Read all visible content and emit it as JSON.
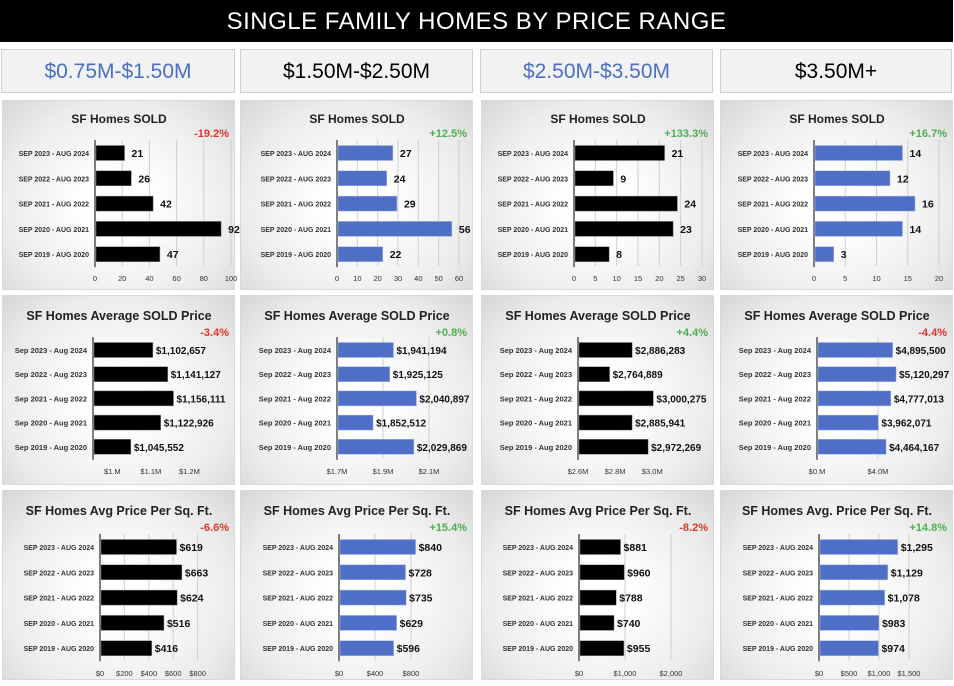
{
  "title": "SINGLE FAMILY HOMES BY PRICE RANGE",
  "colors": {
    "blue": "#4f6fc6",
    "black": "#000000",
    "red": "#e0352b",
    "green": "#4caf50",
    "header_blue": "#4a6fc4"
  },
  "headers": [
    {
      "label": "$0.75M-$1.50M",
      "color": "#4a6fc4"
    },
    {
      "label": "$1.50M-$2.50M",
      "color": "#000000"
    },
    {
      "label": "$2.50M-$3.50M",
      "color": "#4a6fc4"
    },
    {
      "label": "$3.50M+",
      "color": "#000000"
    }
  ],
  "chart_data": [
    {
      "type": "bar",
      "title": "SF Homes SOLD",
      "change": "-19.2%",
      "change_color": "red",
      "bar_color": "black",
      "categories": [
        "SEP 2023 - AUG 2024",
        "SEP 2022 - AUG 2023",
        "SEP 2021 - AUG 2022",
        "SEP 2020 - AUG 2021",
        "SEP 2019 - AUG 2020"
      ],
      "values": [
        21,
        26,
        42,
        92,
        47
      ],
      "labels": [
        "21",
        "26",
        "42",
        "92",
        "47"
      ],
      "xlim": [
        0,
        100
      ],
      "ticks": [
        {
          "v": 0,
          "l": "0"
        },
        {
          "v": 20,
          "l": "20"
        },
        {
          "v": 40,
          "l": "40"
        },
        {
          "v": 60,
          "l": "60"
        },
        {
          "v": 80,
          "l": "80"
        },
        {
          "v": 100,
          "l": "100"
        }
      ],
      "grid": true
    },
    {
      "type": "bar",
      "title": "SF Homes SOLD",
      "change": "+12.5%",
      "change_color": "green",
      "bar_color": "blue",
      "categories": [
        "SEP 2023 - AUG 2024",
        "SEP 2022 - AUG 2023",
        "SEP 2021 - AUG 2022",
        "SEP 2020 - AUG 2021",
        "SEP 2019 - AUG 2020"
      ],
      "values": [
        27,
        24,
        29,
        56,
        22
      ],
      "labels": [
        "27",
        "24",
        "29",
        "56",
        "22"
      ],
      "xlim": [
        0,
        60
      ],
      "ticks": [
        {
          "v": 0,
          "l": "0"
        },
        {
          "v": 10,
          "l": "10"
        },
        {
          "v": 20,
          "l": "20"
        },
        {
          "v": 30,
          "l": "30"
        },
        {
          "v": 40,
          "l": "40"
        },
        {
          "v": 50,
          "l": "50"
        },
        {
          "v": 60,
          "l": "60"
        }
      ],
      "grid": true
    },
    {
      "type": "bar",
      "title": "SF Homes SOLD",
      "change": "+133.3%",
      "change_color": "green",
      "bar_color": "black",
      "categories": [
        "SEP 2023 - AUG 2024",
        "SEP 2022 - AUG 2023",
        "SEP 2021 - AUG 2022",
        "SEP 2020 - AUG 2021",
        "SEP 2019 - AUG 2020"
      ],
      "values": [
        21,
        9,
        24,
        23,
        8
      ],
      "labels": [
        "21",
        "9",
        "24",
        "23",
        "8"
      ],
      "xlim": [
        0,
        30
      ],
      "ticks": [
        {
          "v": 0,
          "l": "0"
        },
        {
          "v": 5,
          "l": "5"
        },
        {
          "v": 10,
          "l": "10"
        },
        {
          "v": 15,
          "l": "15"
        },
        {
          "v": 20,
          "l": "20"
        },
        {
          "v": 25,
          "l": "25"
        },
        {
          "v": 30,
          "l": "30"
        }
      ],
      "grid": true
    },
    {
      "type": "bar",
      "title": "SF Homes SOLD",
      "change": "+16.7%",
      "change_color": "green",
      "bar_color": "blue",
      "categories": [
        "SEP 2023 - AUG 2024",
        "SEP 2022 - AUG 2023",
        "SEP 2021 - AUG 2022",
        "SEP 2020 - AUG 2021",
        "SEP 2019 - AUG 2020"
      ],
      "values": [
        14,
        12,
        16,
        14,
        3
      ],
      "labels": [
        "14",
        "12",
        "16",
        "14",
        "3"
      ],
      "xlim": [
        0,
        20
      ],
      "ticks": [
        {
          "v": 0,
          "l": "0"
        },
        {
          "v": 5,
          "l": "5"
        },
        {
          "v": 10,
          "l": "10"
        },
        {
          "v": 15,
          "l": "15"
        },
        {
          "v": 20,
          "l": "20"
        }
      ],
      "grid": true
    },
    {
      "type": "bar",
      "title": "SF Homes Average SOLD Price",
      "change": "-3.4%",
      "change_color": "red",
      "bar_color": "black",
      "categories": [
        "Sep 2023 - Aug 2024",
        "Sep 2022 - Aug 2023",
        "Sep 2021 - Aug 2022",
        "Sep 2020 - Aug 2021",
        "Sep 2019 - Aug 2020"
      ],
      "values": [
        1102657,
        1141127,
        1156111,
        1122926,
        1045552
      ],
      "labels": [
        "$1,102,657",
        "$1,141,127",
        "$1,156,111",
        "$1,122,926",
        "$1,045,552"
      ],
      "xlim": [
        950000,
        1300000
      ],
      "ticks": [
        {
          "v": 1000000,
          "l": "$1.M"
        },
        {
          "v": 1100000,
          "l": "$1.1M"
        },
        {
          "v": 1200000,
          "l": "$1.2M"
        }
      ],
      "grid": false
    },
    {
      "type": "bar",
      "title": "SF Homes Average SOLD Price",
      "change": "+0.8%",
      "change_color": "green",
      "bar_color": "blue",
      "categories": [
        "Sep 2023 - Aug 2024",
        "Sep 2022 - Aug 2023",
        "Sep 2021 - Aug 2022",
        "Sep 2020 - Aug 2021",
        "Sep 2019 - Aug 2020"
      ],
      "values": [
        1941194,
        1925125,
        2040897,
        1852512,
        2029869
      ],
      "labels": [
        "$1,941,194",
        "$1,925,125",
        "$2,040,897",
        "$1,852,512",
        "$2,029,869"
      ],
      "xlim": [
        1700000,
        2200000
      ],
      "ticks": [
        {
          "v": 1700000,
          "l": "$1.7M"
        },
        {
          "v": 1900000,
          "l": "$1.9M"
        },
        {
          "v": 2100000,
          "l": "$2.1M"
        }
      ],
      "grid": true
    },
    {
      "type": "bar",
      "title": "SF Homes Average SOLD Price",
      "change": "+4.4%",
      "change_color": "green",
      "bar_color": "black",
      "categories": [
        "Sep 2023 - Aug 2024",
        "Sep 2022 - Aug 2023",
        "Sep 2021 - Aug 2022",
        "Sep 2020 - Aug 2021",
        "Sep 2019 - Aug 2020"
      ],
      "values": [
        2886283,
        2764889,
        3000275,
        2885941,
        2972269
      ],
      "labels": [
        "$2,886,283",
        "$2,764,889",
        "$3,000,275",
        "$2,885,941",
        "$2,972,269"
      ],
      "xlim": [
        2600000,
        3300000
      ],
      "ticks": [
        {
          "v": 2600000,
          "l": "$2.6M"
        },
        {
          "v": 2800000,
          "l": "$2.8M"
        },
        {
          "v": 3000000,
          "l": "$3.0M"
        }
      ],
      "grid": false
    },
    {
      "type": "bar",
      "title": "SF Homes Average SOLD Price",
      "change": "-4.4%",
      "change_color": "red",
      "bar_color": "blue",
      "categories": [
        "Sep 2023 - Aug 2024",
        "Sep 2022 - Aug 2023",
        "Sep 2021 - Aug 2022",
        "Sep 2020 - Aug 2021",
        "Sep 2019 - Aug 2020"
      ],
      "values": [
        4895500,
        5120297,
        4777013,
        3962071,
        4464167
      ],
      "labels": [
        "$4,895,500",
        "$5,120,297",
        "$4,777,013",
        "$3,962,071",
        "$4,464,167"
      ],
      "xlim": [
        0,
        8000000
      ],
      "ticks": [
        {
          "v": 0,
          "l": "$0.M"
        },
        {
          "v": 4000000,
          "l": "$4.0M"
        }
      ],
      "grid": true
    },
    {
      "type": "bar",
      "title": "SF Homes Avg Price Per Sq. Ft.",
      "change": "-6.6%",
      "change_color": "red",
      "bar_color": "black",
      "categories": [
        "SEP 2023 - AUG 2024",
        "SEP 2022 - AUG 2023",
        "SEP 2021 - AUG 2022",
        "SEP 2020 - AUG 2021",
        "SEP 2019 - AUG 2020"
      ],
      "values": [
        619,
        663,
        624,
        516,
        416
      ],
      "labels": [
        "$619",
        "$663",
        "$624",
        "$516",
        "$416"
      ],
      "xlim": [
        0,
        1000
      ],
      "ticks": [
        {
          "v": 0,
          "l": "$0"
        },
        {
          "v": 200,
          "l": "$200"
        },
        {
          "v": 400,
          "l": "$400"
        },
        {
          "v": 600,
          "l": "$600"
        },
        {
          "v": 800,
          "l": "$800"
        }
      ],
      "grid": true
    },
    {
      "type": "bar",
      "title": "SF Homes Avg Price Per Sq. Ft.",
      "change": "+15.4%",
      "change_color": "green",
      "bar_color": "blue",
      "categories": [
        "SEP 2023 - AUG 2024",
        "SEP 2022 - AUG 2023",
        "SEP 2021 - AUG 2022",
        "SEP 2020 - AUG 2021",
        "SEP 2019 - AUG 2020"
      ],
      "values": [
        840,
        728,
        735,
        629,
        596
      ],
      "labels": [
        "$840",
        "$728",
        "$735",
        "$629",
        "$596"
      ],
      "xlim": [
        0,
        1200
      ],
      "ticks": [
        {
          "v": 0,
          "l": "$0"
        },
        {
          "v": 400,
          "l": "$400"
        },
        {
          "v": 800,
          "l": "$800"
        }
      ],
      "grid": true
    },
    {
      "type": "bar",
      "title": "SF Homes Avg Price Per Sq. Ft.",
      "change": "-8.2%",
      "change_color": "red",
      "bar_color": "black",
      "categories": [
        "SEP 2023 - AUG 2024",
        "SEP 2022 - AUG 2023",
        "SEP 2021 - AUG 2022",
        "SEP 2020 - AUG 2021",
        "SEP 2019 - AUG 2020"
      ],
      "values": [
        881,
        960,
        788,
        740,
        955
      ],
      "labels": [
        "$881",
        "$960",
        "$788",
        "$740",
        "$955"
      ],
      "xlim": [
        0,
        2500
      ],
      "ticks": [
        {
          "v": 0,
          "l": "$0"
        },
        {
          "v": 1000,
          "l": "$1,000"
        },
        {
          "v": 2000,
          "l": "$2,000"
        }
      ],
      "grid": true
    },
    {
      "type": "bar",
      "title": "SF Homes Avg. Price Per Sq. Ft.",
      "change": "+14.8%",
      "change_color": "green",
      "bar_color": "blue",
      "categories": [
        "SEP 2023 - AUG 2024",
        "SEP 2022 - AUG 2023",
        "SEP 2021 - AUG 2022",
        "SEP 2020 - AUG 2021",
        "SEP 2019 - AUG 2020"
      ],
      "values": [
        1295,
        1129,
        1078,
        983,
        974
      ],
      "labels": [
        "$1,295",
        "$1,129",
        "$1,078",
        "$983",
        "$974"
      ],
      "xlim": [
        0,
        2000
      ],
      "ticks": [
        {
          "v": 0,
          "l": "$0"
        },
        {
          "v": 500,
          "l": "$500"
        },
        {
          "v": 1000,
          "l": "$1,000"
        },
        {
          "v": 1500,
          "l": "$1,500"
        }
      ],
      "grid": true
    }
  ]
}
